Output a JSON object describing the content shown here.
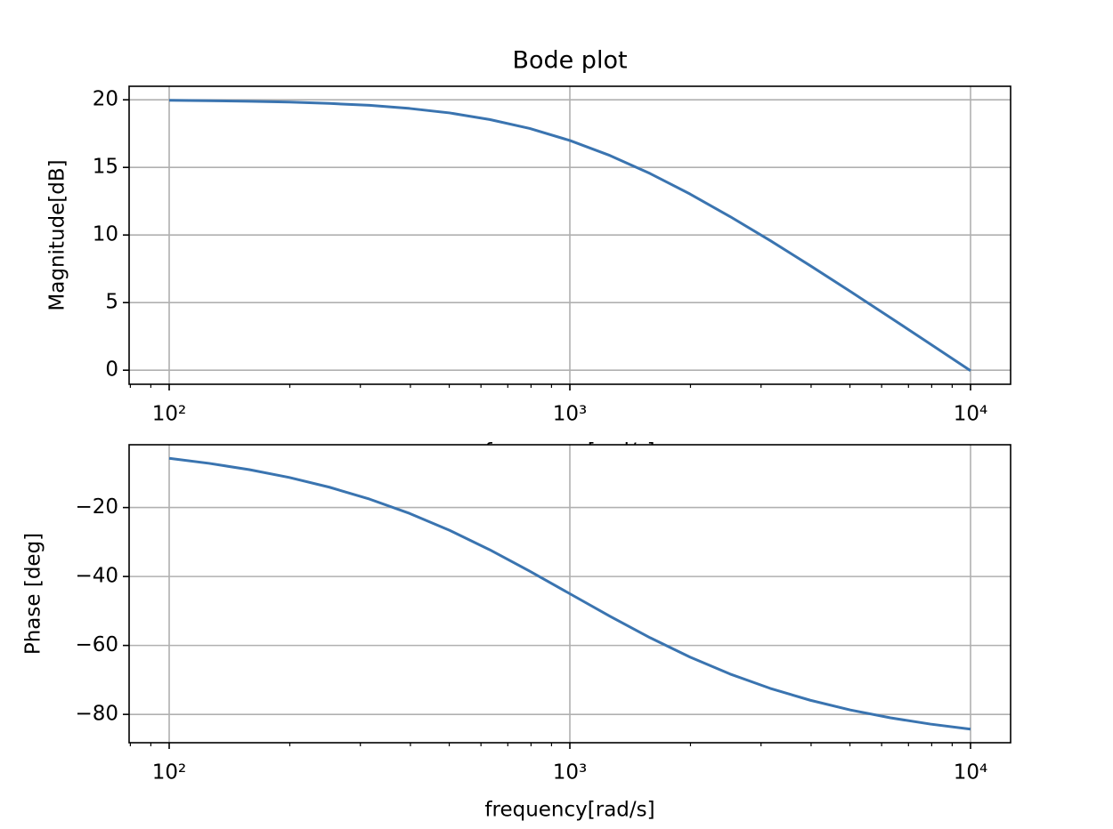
{
  "chart_data": [
    {
      "type": "line",
      "title": "Bode plot",
      "xlabel": "frequency[rad/s]",
      "ylabel": "Magnitude[dB]",
      "x": [
        100,
        125.9,
        158.5,
        199.5,
        251.2,
        316.2,
        398.1,
        501.2,
        631.0,
        794.3,
        1000,
        1258.9,
        1584.9,
        1995.3,
        2511.9,
        3162.3,
        3981.1,
        5011.9,
        6309.6,
        7943.3,
        10000
      ],
      "values": [
        19.96,
        19.93,
        19.89,
        19.83,
        19.73,
        19.59,
        19.36,
        19.03,
        18.54,
        17.88,
        16.99,
        15.88,
        14.55,
        13.03,
        11.36,
        9.59,
        7.73,
        5.83,
        3.89,
        1.93,
        -0.04
      ],
      "color": "#3a74b0",
      "xscale": "log",
      "grid": true,
      "xlim": [
        79.43,
        12589.25
      ],
      "ylim": [
        -1.04,
        21.0
      ],
      "xticks": [
        {
          "value": 100,
          "label": "10²"
        },
        {
          "value": 1000,
          "label": "10³"
        },
        {
          "value": 10000,
          "label": "10⁴"
        }
      ],
      "xminorticks": [
        80,
        90,
        200,
        300,
        400,
        500,
        600,
        700,
        800,
        900,
        2000,
        3000,
        4000,
        5000,
        6000,
        7000,
        8000,
        9000
      ],
      "yticks": [
        0,
        5,
        10,
        15,
        20
      ]
    },
    {
      "type": "line",
      "xlabel": "frequency[rad/s]",
      "ylabel": "Phase [deg]",
      "x": [
        100,
        125.9,
        158.5,
        199.5,
        251.2,
        316.2,
        398.1,
        501.2,
        631.0,
        794.3,
        1000,
        1258.9,
        1584.9,
        1995.3,
        2511.9,
        3162.3,
        3981.1,
        5011.9,
        6309.6,
        7943.3,
        10000
      ],
      "values": [
        -5.71,
        -7.18,
        -9.01,
        -11.28,
        -14.1,
        -17.55,
        -21.7,
        -26.62,
        -32.25,
        -38.46,
        -45.0,
        -51.54,
        -57.75,
        -63.38,
        -68.3,
        -72.45,
        -75.9,
        -78.72,
        -81.0,
        -82.82,
        -84.29
      ],
      "color": "#3a74b0",
      "xscale": "log",
      "grid": true,
      "xlim": [
        79.43,
        12589.25
      ],
      "ylim": [
        -88.22,
        -1.78
      ],
      "xticks": [
        {
          "value": 100,
          "label": "10²"
        },
        {
          "value": 1000,
          "label": "10³"
        },
        {
          "value": 10000,
          "label": "10⁴"
        }
      ],
      "xminorticks": [
        80,
        90,
        200,
        300,
        400,
        500,
        600,
        700,
        800,
        900,
        2000,
        3000,
        4000,
        5000,
        6000,
        7000,
        8000,
        9000
      ],
      "yticks": [
        {
          "value": -20,
          "label": "−20"
        },
        {
          "value": -40,
          "label": "−40"
        },
        {
          "value": -60,
          "label": "−60"
        },
        {
          "value": -80,
          "label": "−80"
        }
      ]
    }
  ]
}
